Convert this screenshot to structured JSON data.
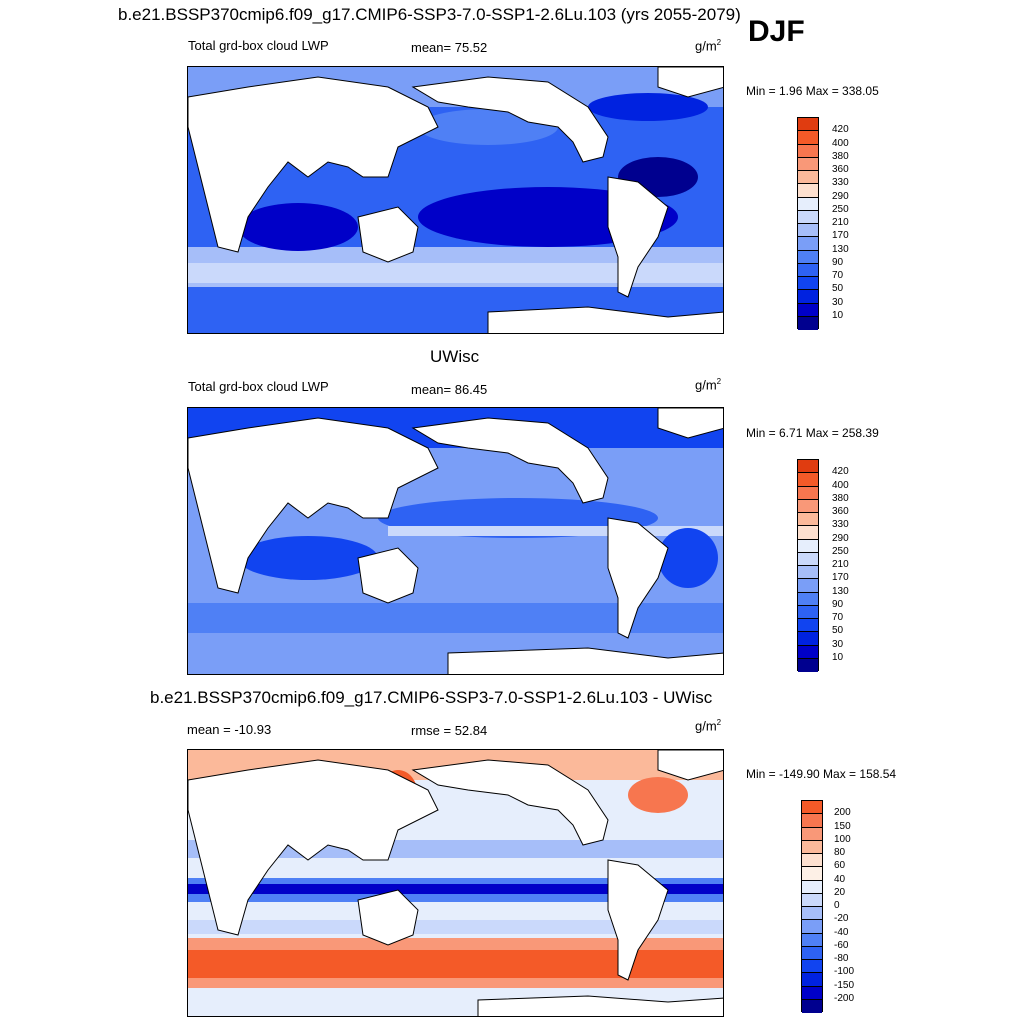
{
  "header": {
    "title": "b.e21.BSSP370cmip6.f09_g17.CMIP6-SSP3-7.0-SSP1-2.6Lu.103 (yrs 2055-2079)",
    "season": "DJF"
  },
  "colors": {
    "abs_scale": [
      "#00008f",
      "#0000c8",
      "#0022e0",
      "#1144f0",
      "#2e62f3",
      "#4f80f5",
      "#7a9ef7",
      "#a6bef9",
      "#cad9fb",
      "#e6eefc",
      "#fde0cf",
      "#fbb99a",
      "#f99878",
      "#f7764f",
      "#f45a28",
      "#e03c10",
      "#b02208",
      "#800000"
    ],
    "diff_scale": [
      "#00008f",
      "#0000c8",
      "#0022e0",
      "#1144f0",
      "#2e62f3",
      "#4f80f5",
      "#7a9ef7",
      "#a6bef9",
      "#cad9fb",
      "#e6eefc",
      "#fdf0e6",
      "#fde0cf",
      "#fbb99a",
      "#f99878",
      "#f7764f",
      "#f45a28",
      "#e03c10",
      "#b02208",
      "#800000"
    ]
  },
  "chart_data": [
    {
      "type": "heatmap",
      "title": "Total grd-box cloud LWP",
      "center_label": "mean=  75.52",
      "units": "g/m",
      "units_sup": "2",
      "minmax": "Min =   1.96 Max = 338.05",
      "min": 1.96,
      "max": 338.05,
      "mean": 75.52,
      "colorbar_levels": [
        "420",
        "400",
        "380",
        "360",
        "330",
        "290",
        "250",
        "210",
        "170",
        "130",
        "90",
        "70",
        "50",
        "30",
        "10"
      ]
    },
    {
      "type": "heatmap",
      "subtitle": "UWisc",
      "title": "Total grd-box cloud LWP",
      "center_label": "mean=  86.45",
      "units": "g/m",
      "units_sup": "2",
      "minmax": "Min =   6.71 Max = 258.39",
      "min": 6.71,
      "max": 258.39,
      "mean": 86.45,
      "colorbar_levels": [
        "420",
        "400",
        "380",
        "360",
        "330",
        "290",
        "250",
        "210",
        "170",
        "130",
        "90",
        "70",
        "50",
        "30",
        "10"
      ]
    },
    {
      "type": "heatmap",
      "subtitle": "b.e21.BSSP370cmip6.f09_g17.CMIP6-SSP3-7.0-SSP1-2.6Lu.103 - UWisc",
      "title": "mean = -10.93",
      "center_label": "rmse =  52.84",
      "units": "g/m",
      "units_sup": "2",
      "minmax": "Min = -149.90 Max = 158.54",
      "min": -149.9,
      "max": 158.54,
      "mean": -10.93,
      "rmse": 52.84,
      "colorbar_levels": [
        "200",
        "150",
        "100",
        "80",
        "60",
        "40",
        "20",
        "0",
        "-20",
        "-40",
        "-60",
        "-80",
        "-100",
        "-150",
        "-200"
      ]
    }
  ]
}
